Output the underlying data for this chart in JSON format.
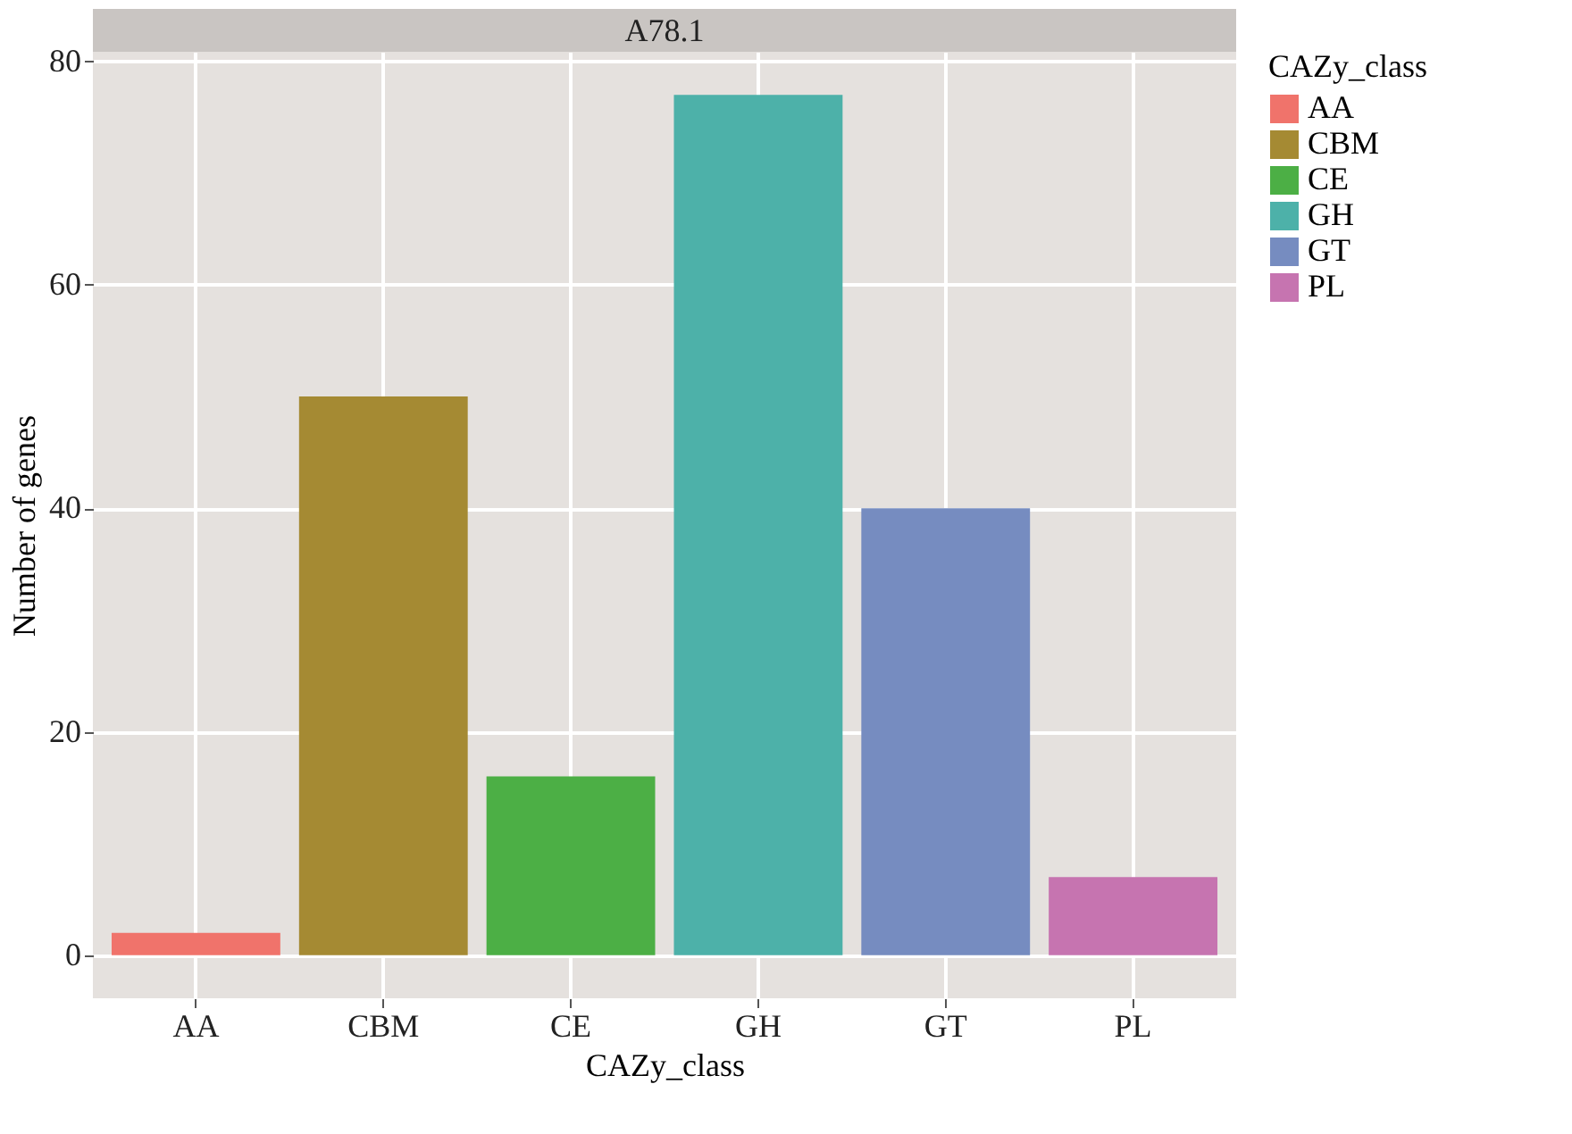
{
  "chart_data": {
    "type": "bar",
    "title": "A78.1",
    "xlabel": "CAZy_class",
    "ylabel": "Number of genes",
    "legend_title": "CAZy_class",
    "categories": [
      "AA",
      "CBM",
      "CE",
      "GH",
      "GT",
      "PL"
    ],
    "series": [
      {
        "name": "AA",
        "color": "#f0736b",
        "values": [
          2,
          null,
          null,
          null,
          null,
          null
        ]
      },
      {
        "name": "CBM",
        "color": "#a58a33",
        "values": [
          null,
          50,
          null,
          null,
          null,
          null
        ]
      },
      {
        "name": "CE",
        "color": "#4caf45",
        "values": [
          null,
          null,
          16,
          null,
          null,
          null
        ]
      },
      {
        "name": "GH",
        "color": "#4db1a9",
        "values": [
          null,
          null,
          null,
          77,
          null,
          null
        ]
      },
      {
        "name": "GT",
        "color": "#768cc0",
        "values": [
          null,
          null,
          null,
          null,
          40,
          null
        ]
      },
      {
        "name": "PL",
        "color": "#c674b0",
        "values": [
          null,
          null,
          null,
          null,
          null,
          7
        ]
      }
    ],
    "ylim": [
      -3.85,
      80.85
    ],
    "yticks": [
      0,
      20,
      40,
      60,
      80
    ],
    "grid": true,
    "legend": "right"
  }
}
